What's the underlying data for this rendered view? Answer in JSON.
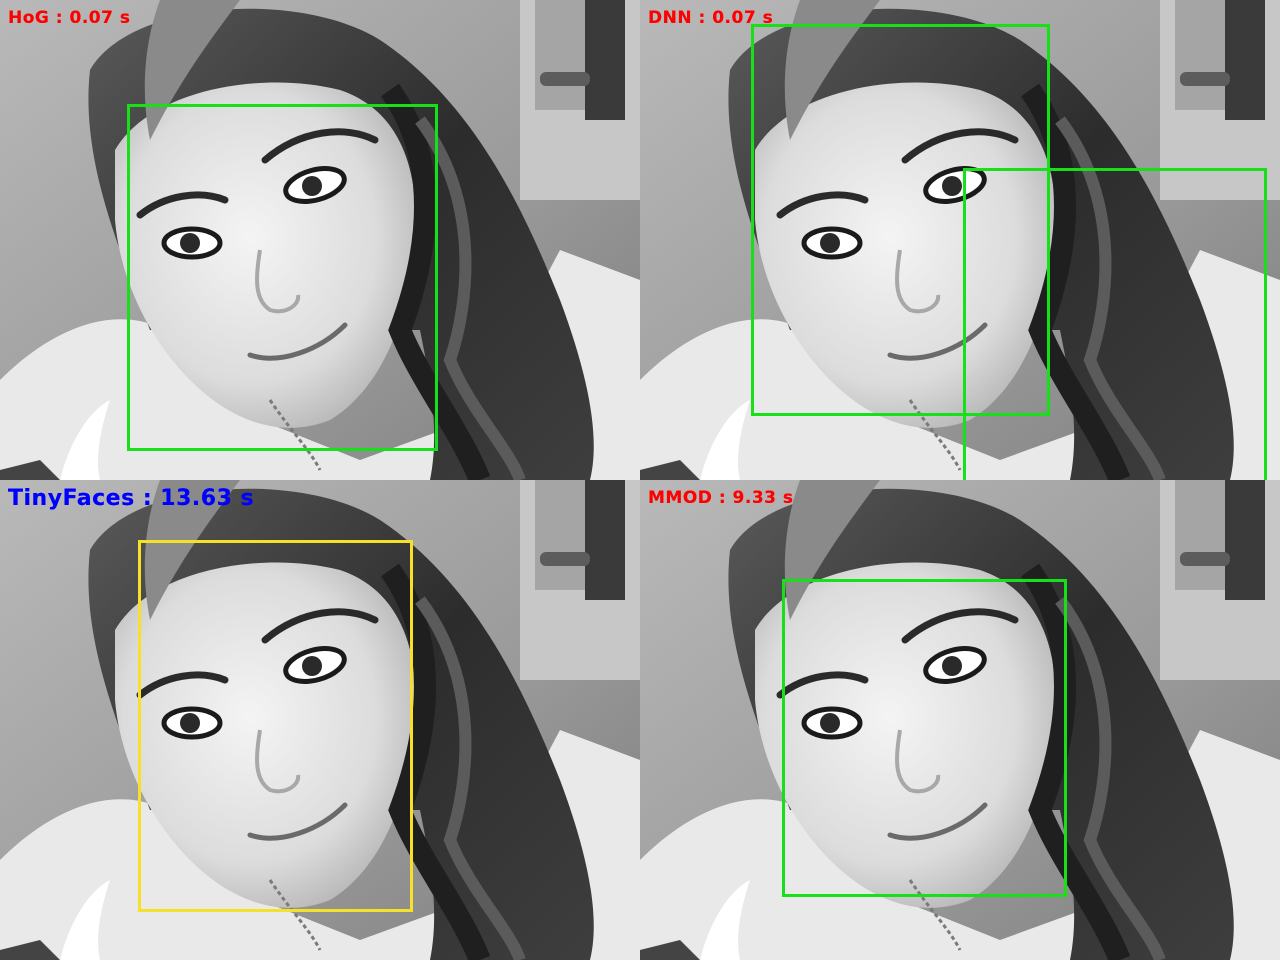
{
  "panels": [
    {
      "name": "hog-panel",
      "label": "HoG : 0.07 s",
      "label_color": "#ff0000",
      "box_color": "#18e018"
    },
    {
      "name": "dnn-panel",
      "label": "DNN : 0.07 s",
      "label_color": "#ff0000",
      "box_color": "#18e018"
    },
    {
      "name": "tinyfaces-panel",
      "label": "TinyFaces : 13.63 s",
      "label_color": "#0000ff",
      "box_color": "#f5e12a"
    },
    {
      "name": "mmod-panel",
      "label": "MMOD : 9.33 s",
      "label_color": "#ff0000",
      "box_color": "#18e018"
    }
  ]
}
